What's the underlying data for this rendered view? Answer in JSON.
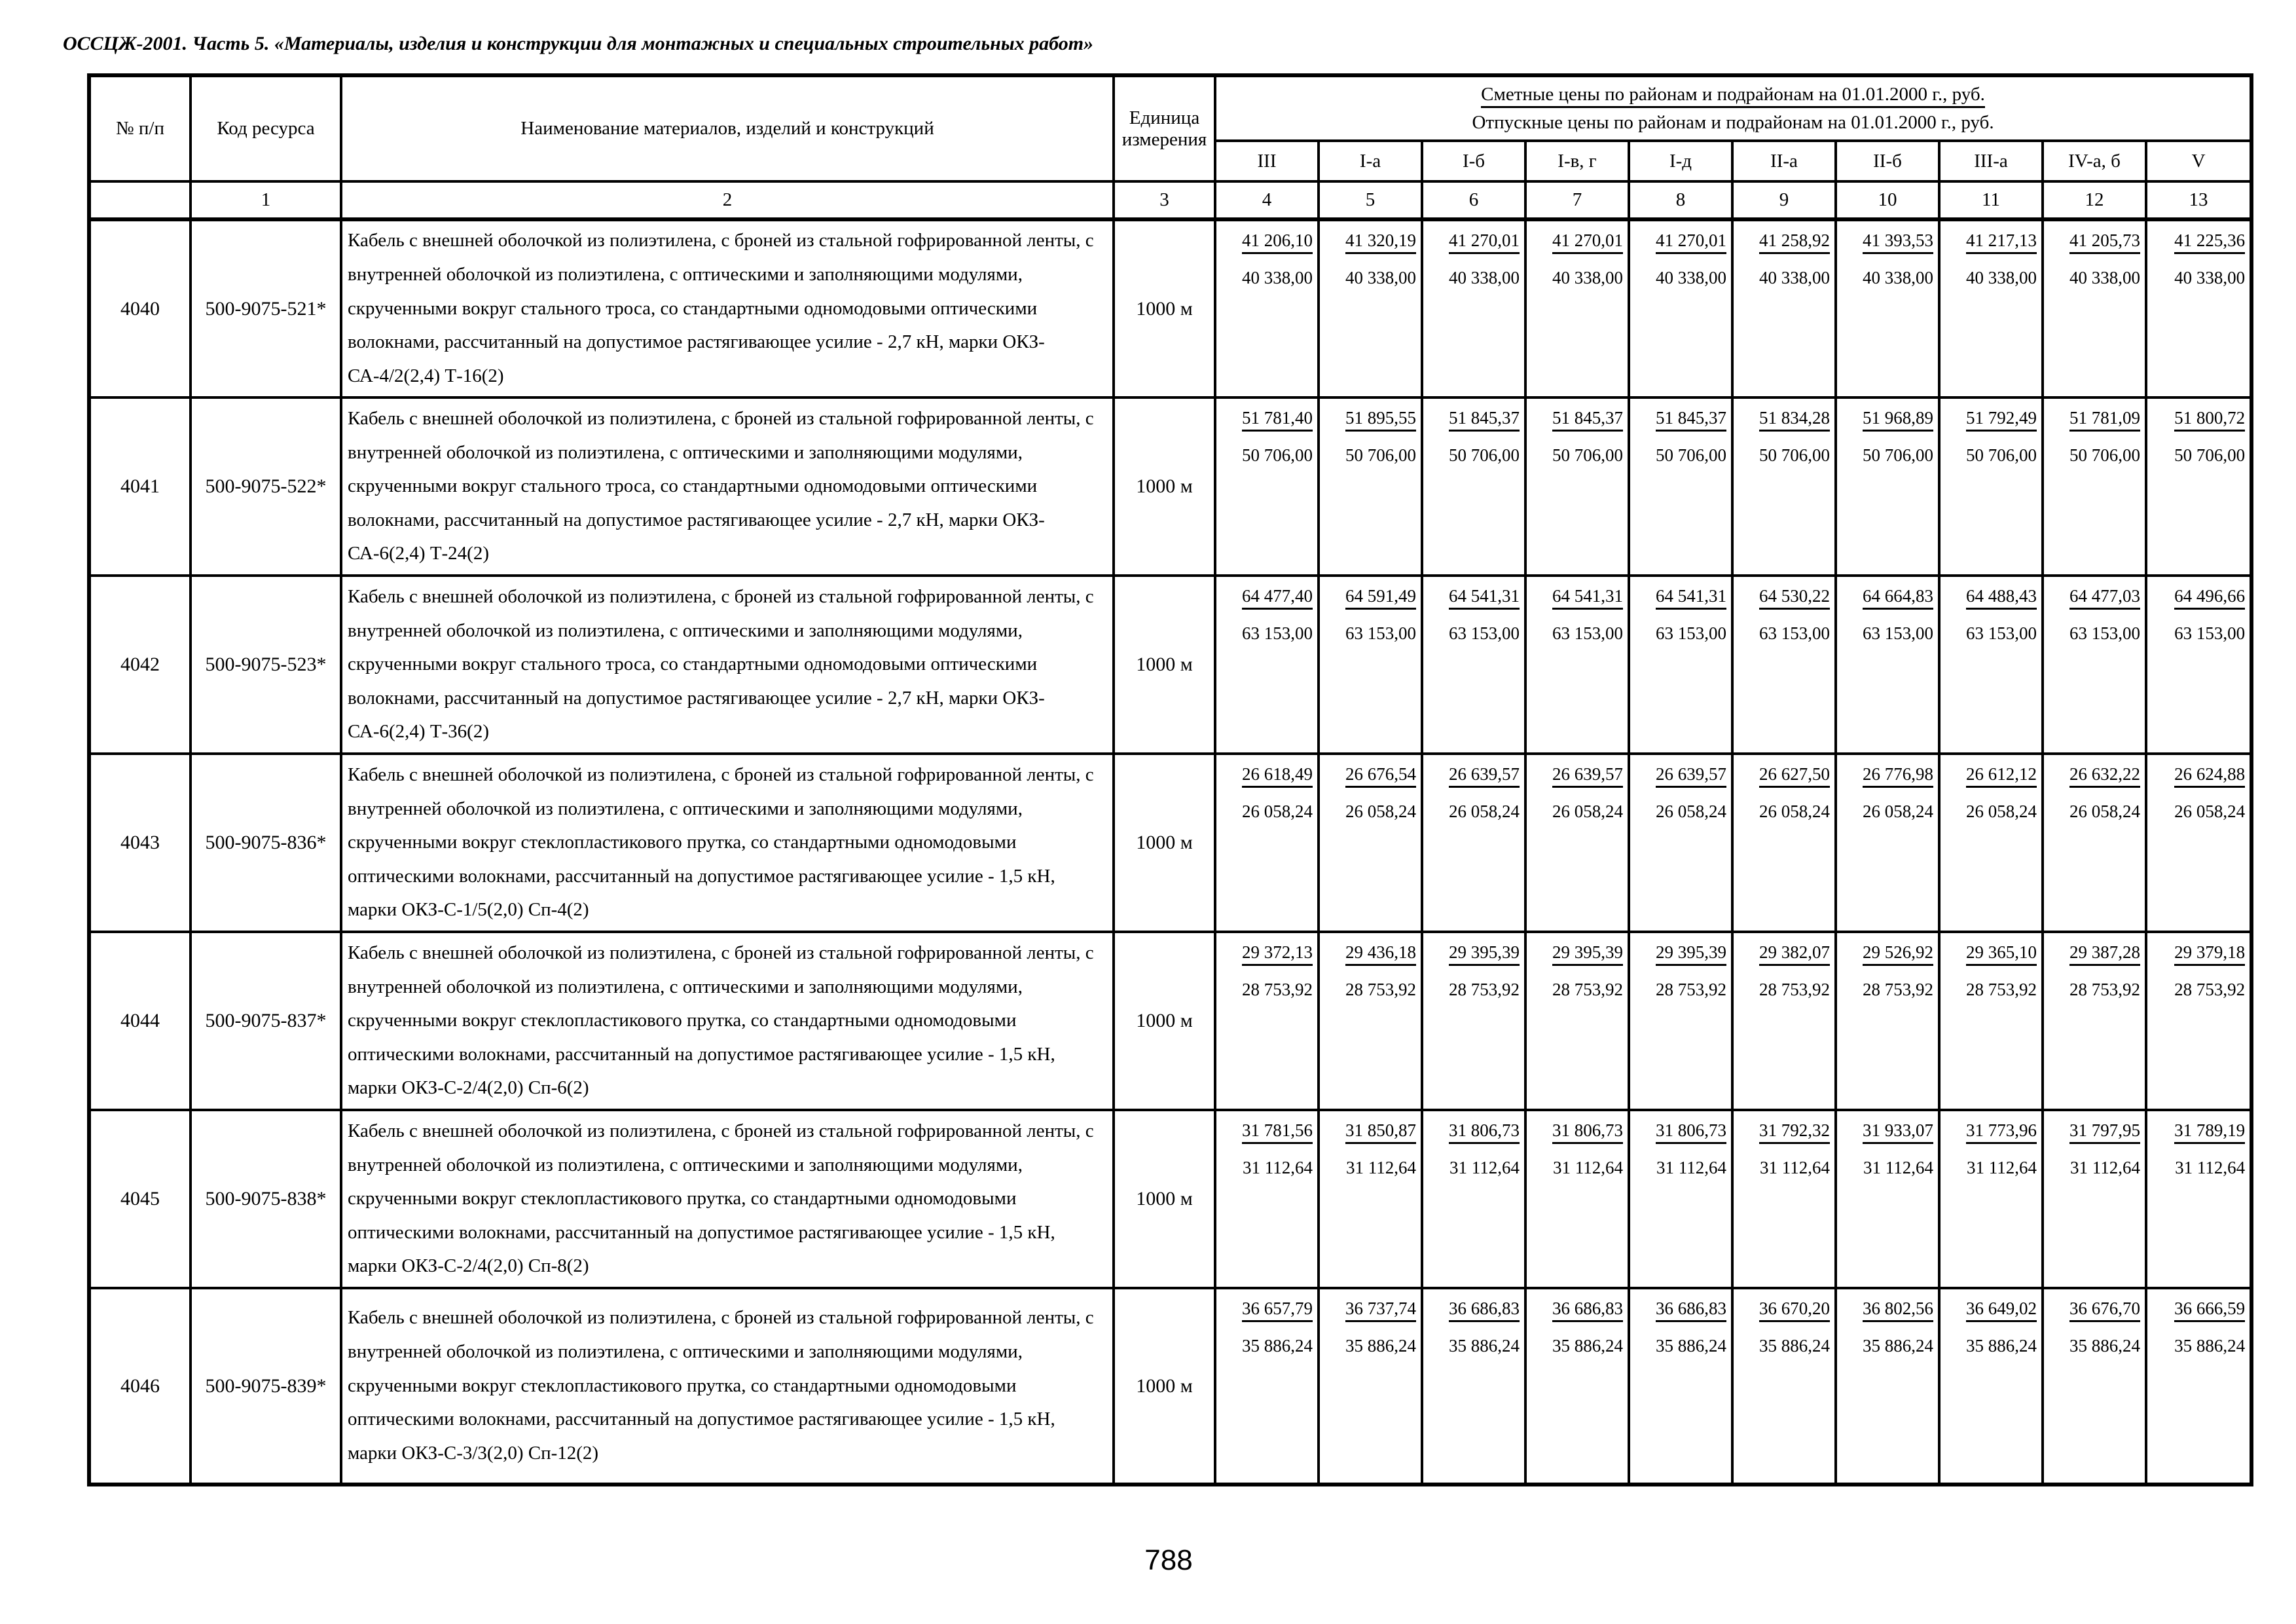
{
  "page": {
    "header_title": "ОССЦЖ-2001. Часть 5. «Материалы, изделия и конструкции для монтажных и специальных строительных работ»",
    "page_number": "788"
  },
  "table": {
    "columns": {
      "num": "№ п/п",
      "code": "Код ресурса",
      "name": "Наименование материалов, изделий и конструкций",
      "unit": "Единица измерения",
      "prices_line1": "Сметные цены по районам и подрайонам на 01.01.2000 г., руб.",
      "prices_line2": "Отпускные цены по районам и подрайонам на 01.01.2000 г., руб.",
      "regions": [
        "III",
        "I-а",
        "I-б",
        "I-в, г",
        "I-д",
        "II-а",
        "II-б",
        "III-а",
        "IV-а, б",
        "V"
      ],
      "numbering": [
        "",
        "1",
        "2",
        "3",
        "4",
        "5",
        "6",
        "7",
        "8",
        "9",
        "10",
        "11",
        "12",
        "13"
      ]
    },
    "rows": [
      {
        "num": "4040",
        "code": "500-9075-521*",
        "name": "Кабель с внешней оболочкой из полиэтилена, с броней из стальной гофрированной ленты, с внутренней оболочкой из полиэтилена, с оптическими и заполняющими модулями, скрученными вокруг стального троса, со стандартными одномодовыми оптическими волокнами, рассчитанный на допустимое растягивающее усилие - 2,7 кН, марки ОКЗ-СА-4/2(2,4) Т-16(2)",
        "unit": "1000 м",
        "estimate_prices": [
          "41 206,10",
          "41 320,19",
          "41 270,01",
          "41 270,01",
          "41 270,01",
          "41 258,92",
          "41 393,53",
          "41 217,13",
          "41 205,73",
          "41 225,36"
        ],
        "selling_prices": [
          "40 338,00",
          "40 338,00",
          "40 338,00",
          "40 338,00",
          "40 338,00",
          "40 338,00",
          "40 338,00",
          "40 338,00",
          "40 338,00",
          "40 338,00"
        ]
      },
      {
        "num": "4041",
        "code": "500-9075-522*",
        "name": "Кабель с внешней оболочкой из полиэтилена, с броней из стальной гофрированной ленты, с внутренней оболочкой из полиэтилена, с оптическими и заполняющими модулями, скрученными вокруг стального троса, со стандартными одномодовыми оптическими волокнами, рассчитанный на допустимое растягивающее усилие - 2,7 кН, марки ОКЗ-СА-6(2,4) Т-24(2)",
        "unit": "1000 м",
        "estimate_prices": [
          "51 781,40",
          "51 895,55",
          "51 845,37",
          "51 845,37",
          "51 845,37",
          "51 834,28",
          "51 968,89",
          "51 792,49",
          "51 781,09",
          "51 800,72"
        ],
        "selling_prices": [
          "50 706,00",
          "50 706,00",
          "50 706,00",
          "50 706,00",
          "50 706,00",
          "50 706,00",
          "50 706,00",
          "50 706,00",
          "50 706,00",
          "50 706,00"
        ]
      },
      {
        "num": "4042",
        "code": "500-9075-523*",
        "name": "Кабель с внешней оболочкой из полиэтилена, с броней из стальной гофрированной ленты, с внутренней оболочкой из полиэтилена, с оптическими и заполняющими модулями, скрученными вокруг стального троса, со стандартными одномодовыми оптическими волокнами, рассчитанный на допустимое растягивающее усилие - 2,7 кН, марки ОКЗ-СА-6(2,4) Т-36(2)",
        "unit": "1000 м",
        "estimate_prices": [
          "64 477,40",
          "64 591,49",
          "64 541,31",
          "64 541,31",
          "64 541,31",
          "64 530,22",
          "64 664,83",
          "64 488,43",
          "64 477,03",
          "64 496,66"
        ],
        "selling_prices": [
          "63 153,00",
          "63 153,00",
          "63 153,00",
          "63 153,00",
          "63 153,00",
          "63 153,00",
          "63 153,00",
          "63 153,00",
          "63 153,00",
          "63 153,00"
        ]
      },
      {
        "num": "4043",
        "code": "500-9075-836*",
        "name": "Кабель с внешней оболочкой из полиэтилена, с броней из стальной гофрированной ленты, с внутренней оболочкой из полиэтилена, с оптическими и заполняющими модулями, скрученными вокруг стеклопластикового прутка, со стандартными одномодовыми оптическими волокнами, рассчитанный на допустимое растягивающее усилие - 1,5 кН, марки ОКЗ-С-1/5(2,0) Сп-4(2)",
        "unit": "1000 м",
        "estimate_prices": [
          "26 618,49",
          "26 676,54",
          "26 639,57",
          "26 639,57",
          "26 639,57",
          "26 627,50",
          "26 776,98",
          "26 612,12",
          "26 632,22",
          "26 624,88"
        ],
        "selling_prices": [
          "26 058,24",
          "26 058,24",
          "26 058,24",
          "26 058,24",
          "26 058,24",
          "26 058,24",
          "26 058,24",
          "26 058,24",
          "26 058,24",
          "26 058,24"
        ]
      },
      {
        "num": "4044",
        "code": "500-9075-837*",
        "name": "Кабель с внешней оболочкой из полиэтилена, с броней из стальной гофрированной ленты, с внутренней оболочкой из полиэтилена, с оптическими и заполняющими модулями, скрученными вокруг стеклопластикового прутка, со стандартными одномодовыми оптическими волокнами, рассчитанный на допустимое растягивающее усилие - 1,5 кН, марки ОКЗ-С-2/4(2,0) Сп-6(2)",
        "unit": "1000 м",
        "estimate_prices": [
          "29 372,13",
          "29 436,18",
          "29 395,39",
          "29 395,39",
          "29 395,39",
          "29 382,07",
          "29 526,92",
          "29 365,10",
          "29 387,28",
          "29 379,18"
        ],
        "selling_prices": [
          "28 753,92",
          "28 753,92",
          "28 753,92",
          "28 753,92",
          "28 753,92",
          "28 753,92",
          "28 753,92",
          "28 753,92",
          "28 753,92",
          "28 753,92"
        ]
      },
      {
        "num": "4045",
        "code": "500-9075-838*",
        "name": "Кабель с внешней оболочкой из полиэтилена, с броней из стальной гофрированной ленты, с внутренней оболочкой из полиэтилена, с оптическими и заполняющими модулями, скрученными вокруг стеклопластикового прутка, со стандартными одномодовыми оптическими волокнами, рассчитанный на допустимое растягивающее усилие - 1,5 кН, марки ОКЗ-С-2/4(2,0) Сп-8(2)",
        "unit": "1000 м",
        "estimate_prices": [
          "31 781,56",
          "31 850,87",
          "31 806,73",
          "31 806,73",
          "31 806,73",
          "31 792,32",
          "31 933,07",
          "31 773,96",
          "31 797,95",
          "31 789,19"
        ],
        "selling_prices": [
          "31 112,64",
          "31 112,64",
          "31 112,64",
          "31 112,64",
          "31 112,64",
          "31 112,64",
          "31 112,64",
          "31 112,64",
          "31 112,64",
          "31 112,64"
        ]
      },
      {
        "num": "4046",
        "code": "500-9075-839*",
        "name": "Кабель с внешней оболочкой из полиэтилена, с броней из стальной гофрированной ленты, с внутренней оболочкой из полиэтилена, с оптическими и заполняющими модулями, скрученными вокруг стеклопластикового прутка, со стандартными одномодовыми оптическими волокнами, рассчитанный на допустимое растягивающее усилие - 1,5 кН, марки ОКЗ-С-3/3(2,0) Сп-12(2)",
        "unit": "1000 м",
        "estimate_prices": [
          "36 657,79",
          "36 737,74",
          "36 686,83",
          "36 686,83",
          "36 686,83",
          "36 670,20",
          "36 802,56",
          "36 649,02",
          "36 676,70",
          "36 666,59"
        ],
        "selling_prices": [
          "35 886,24",
          "35 886,24",
          "35 886,24",
          "35 886,24",
          "35 886,24",
          "35 886,24",
          "35 886,24",
          "35 886,24",
          "35 886,24",
          "35 886,24"
        ]
      }
    ]
  }
}
